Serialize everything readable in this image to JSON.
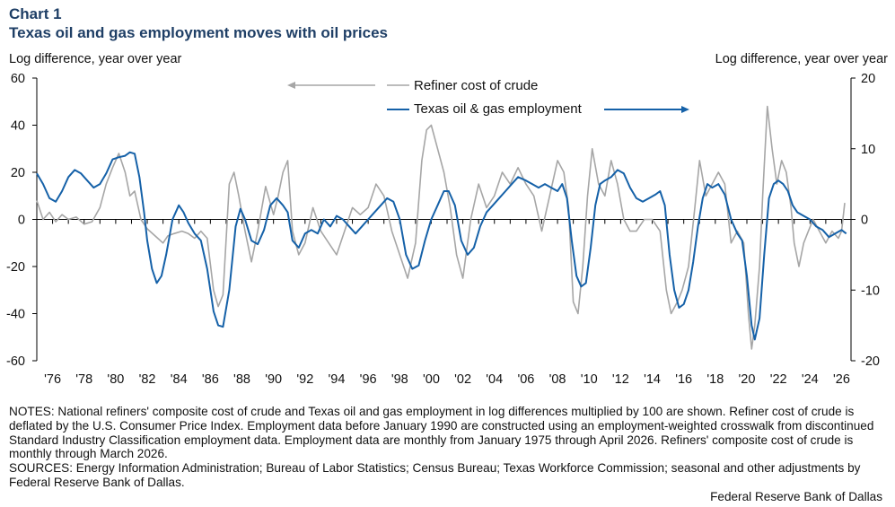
{
  "header": {
    "kicker": "Chart 1",
    "title": "Texas oil and gas employment moves with oil prices",
    "left_axis_label": "Log difference, year over year",
    "right_axis_label": "Log difference, year over year"
  },
  "colors": {
    "crude": "#a6a6a6",
    "employment": "#1561a8",
    "axis": "#000000",
    "title": "#1f3f66"
  },
  "chart_data": {
    "type": "line",
    "x_range": [
      1975.0,
      2026.6
    ],
    "x_tick_labels": [
      "'76",
      "'78",
      "'80",
      "'82",
      "'84",
      "'86",
      "'88",
      "'90",
      "'92",
      "'94",
      "'96",
      "'98",
      "'00",
      "'02",
      "'04",
      "'06",
      "'08",
      "'10",
      "'12",
      "'14",
      "'16",
      "'18",
      "'20",
      "'22",
      "'24",
      "'26"
    ],
    "x_tick_years": [
      1976,
      1978,
      1980,
      1982,
      1984,
      1986,
      1988,
      1990,
      1992,
      1994,
      1996,
      1998,
      2000,
      2002,
      2004,
      2006,
      2008,
      2010,
      2012,
      2014,
      2016,
      2018,
      2020,
      2022,
      2024,
      2026
    ],
    "left_axis": {
      "range": [
        -60,
        60
      ],
      "ticks": [
        -60,
        -40,
        -20,
        0,
        20,
        40,
        60
      ]
    },
    "right_axis": {
      "range": [
        -20,
        20
      ],
      "ticks": [
        -20,
        -10,
        0,
        10,
        20
      ]
    },
    "legend": [
      {
        "label": "Refiner cost of crude",
        "series": "crude",
        "arrow": "left"
      },
      {
        "label": "Texas oil & gas employment",
        "series": "employment",
        "arrow": "right"
      }
    ],
    "series": [
      {
        "name": "Refiner cost of crude",
        "key": "crude",
        "axis": "left",
        "points": [
          [
            1975.0,
            8
          ],
          [
            1975.4,
            0
          ],
          [
            1975.8,
            3
          ],
          [
            1976.2,
            -1
          ],
          [
            1976.6,
            2
          ],
          [
            1977.0,
            0
          ],
          [
            1977.5,
            1
          ],
          [
            1978.0,
            -2
          ],
          [
            1978.5,
            -1
          ],
          [
            1979.0,
            5
          ],
          [
            1979.4,
            15
          ],
          [
            1979.8,
            22
          ],
          [
            1980.2,
            28
          ],
          [
            1980.6,
            20
          ],
          [
            1980.9,
            10
          ],
          [
            1981.2,
            12
          ],
          [
            1981.6,
            0
          ],
          [
            1982.0,
            -4
          ],
          [
            1982.5,
            -7
          ],
          [
            1983.0,
            -10
          ],
          [
            1983.3,
            -7
          ],
          [
            1983.7,
            -6
          ],
          [
            1984.2,
            -5
          ],
          [
            1984.6,
            -6
          ],
          [
            1985.0,
            -8
          ],
          [
            1985.4,
            -5
          ],
          [
            1985.8,
            -8
          ],
          [
            1986.2,
            -30
          ],
          [
            1986.5,
            -37
          ],
          [
            1986.8,
            -32
          ],
          [
            1987.2,
            15
          ],
          [
            1987.5,
            20
          ],
          [
            1987.8,
            10
          ],
          [
            1988.2,
            -5
          ],
          [
            1988.6,
            -18
          ],
          [
            1989.0,
            -5
          ],
          [
            1989.5,
            14
          ],
          [
            1990.0,
            2
          ],
          [
            1990.3,
            10
          ],
          [
            1990.6,
            20
          ],
          [
            1990.9,
            25
          ],
          [
            1991.2,
            -5
          ],
          [
            1991.6,
            -15
          ],
          [
            1992.0,
            -10
          ],
          [
            1992.5,
            5
          ],
          [
            1993.0,
            -5
          ],
          [
            1993.5,
            -10
          ],
          [
            1994.0,
            -15
          ],
          [
            1994.5,
            -5
          ],
          [
            1995.0,
            5
          ],
          [
            1995.5,
            2
          ],
          [
            1996.0,
            5
          ],
          [
            1996.5,
            15
          ],
          [
            1997.0,
            10
          ],
          [
            1997.5,
            -5
          ],
          [
            1998.0,
            -15
          ],
          [
            1998.5,
            -25
          ],
          [
            1999.0,
            -10
          ],
          [
            1999.4,
            25
          ],
          [
            1999.7,
            38
          ],
          [
            2000.0,
            40
          ],
          [
            2000.4,
            30
          ],
          [
            2000.8,
            20
          ],
          [
            2001.2,
            5
          ],
          [
            2001.6,
            -15
          ],
          [
            2002.0,
            -25
          ],
          [
            2002.5,
            0
          ],
          [
            2003.0,
            15
          ],
          [
            2003.5,
            5
          ],
          [
            2004.0,
            10
          ],
          [
            2004.5,
            20
          ],
          [
            2005.0,
            15
          ],
          [
            2005.5,
            22
          ],
          [
            2006.0,
            15
          ],
          [
            2006.5,
            10
          ],
          [
            2007.0,
            -5
          ],
          [
            2007.5,
            10
          ],
          [
            2008.0,
            25
          ],
          [
            2008.4,
            20
          ],
          [
            2008.7,
            5
          ],
          [
            2009.0,
            -35
          ],
          [
            2009.3,
            -40
          ],
          [
            2009.6,
            -20
          ],
          [
            2009.9,
            10
          ],
          [
            2010.2,
            30
          ],
          [
            2010.6,
            15
          ],
          [
            2011.0,
            10
          ],
          [
            2011.4,
            25
          ],
          [
            2011.8,
            15
          ],
          [
            2012.2,
            0
          ],
          [
            2012.6,
            -5
          ],
          [
            2013.0,
            -5
          ],
          [
            2013.5,
            0
          ],
          [
            2014.0,
            0
          ],
          [
            2014.5,
            -5
          ],
          [
            2014.9,
            -30
          ],
          [
            2015.2,
            -40
          ],
          [
            2015.6,
            -35
          ],
          [
            2015.9,
            -30
          ],
          [
            2016.3,
            -20
          ],
          [
            2016.7,
            5
          ],
          [
            2017.0,
            25
          ],
          [
            2017.4,
            10
          ],
          [
            2017.8,
            15
          ],
          [
            2018.2,
            20
          ],
          [
            2018.6,
            15
          ],
          [
            2019.0,
            -10
          ],
          [
            2019.4,
            -5
          ],
          [
            2019.8,
            -10
          ],
          [
            2020.1,
            -40
          ],
          [
            2020.3,
            -55
          ],
          [
            2020.5,
            -45
          ],
          [
            2020.8,
            -20
          ],
          [
            2021.0,
            10
          ],
          [
            2021.3,
            48
          ],
          [
            2021.6,
            30
          ],
          [
            2021.9,
            15
          ],
          [
            2022.2,
            25
          ],
          [
            2022.5,
            20
          ],
          [
            2022.8,
            5
          ],
          [
            2023.0,
            -10
          ],
          [
            2023.3,
            -20
          ],
          [
            2023.6,
            -10
          ],
          [
            2023.9,
            -5
          ],
          [
            2024.2,
            0
          ],
          [
            2024.6,
            -5
          ],
          [
            2025.0,
            -10
          ],
          [
            2025.4,
            -5
          ],
          [
            2025.8,
            -8
          ],
          [
            2026.0,
            -5
          ],
          [
            2026.2,
            7
          ]
        ]
      },
      {
        "name": "Texas oil & gas employment",
        "key": "employment",
        "axis": "right",
        "points": [
          [
            1975.0,
            6.5
          ],
          [
            1975.4,
            5
          ],
          [
            1975.8,
            3
          ],
          [
            1976.2,
            2.5
          ],
          [
            1976.6,
            4
          ],
          [
            1977.0,
            6
          ],
          [
            1977.4,
            7
          ],
          [
            1977.8,
            6.5
          ],
          [
            1978.2,
            5.5
          ],
          [
            1978.6,
            4.5
          ],
          [
            1979.0,
            5
          ],
          [
            1979.4,
            6.5
          ],
          [
            1979.8,
            8.5
          ],
          [
            1980.2,
            8.8
          ],
          [
            1980.6,
            9
          ],
          [
            1980.9,
            9.5
          ],
          [
            1981.2,
            9.3
          ],
          [
            1981.5,
            6
          ],
          [
            1981.8,
            1
          ],
          [
            1982.0,
            -3
          ],
          [
            1982.3,
            -7
          ],
          [
            1982.6,
            -9
          ],
          [
            1982.9,
            -8
          ],
          [
            1983.2,
            -5
          ],
          [
            1983.6,
            0
          ],
          [
            1984.0,
            2
          ],
          [
            1984.3,
            1
          ],
          [
            1984.6,
            -0.5
          ],
          [
            1985.0,
            -2
          ],
          [
            1985.4,
            -3
          ],
          [
            1985.8,
            -7
          ],
          [
            1986.2,
            -13
          ],
          [
            1986.5,
            -15
          ],
          [
            1986.8,
            -15.2
          ],
          [
            1987.2,
            -10
          ],
          [
            1987.6,
            -1
          ],
          [
            1987.9,
            1.5
          ],
          [
            1988.2,
            0
          ],
          [
            1988.6,
            -3
          ],
          [
            1989.0,
            -3.5
          ],
          [
            1989.4,
            -1.5
          ],
          [
            1989.8,
            2
          ],
          [
            1990.2,
            3
          ],
          [
            1990.6,
            2
          ],
          [
            1990.9,
            1
          ],
          [
            1991.2,
            -3
          ],
          [
            1991.6,
            -4
          ],
          [
            1992.0,
            -2
          ],
          [
            1992.4,
            -1.5
          ],
          [
            1992.8,
            -2
          ],
          [
            1993.2,
            0
          ],
          [
            1993.6,
            -1
          ],
          [
            1994.0,
            0.5
          ],
          [
            1994.4,
            0
          ],
          [
            1994.8,
            -1
          ],
          [
            1995.2,
            -2
          ],
          [
            1995.6,
            -1
          ],
          [
            1996.0,
            0
          ],
          [
            1996.4,
            1
          ],
          [
            1996.8,
            2
          ],
          [
            1997.2,
            3
          ],
          [
            1997.6,
            2.5
          ],
          [
            1998.0,
            0
          ],
          [
            1998.4,
            -5
          ],
          [
            1998.8,
            -7
          ],
          [
            1999.2,
            -6.5
          ],
          [
            1999.6,
            -3
          ],
          [
            2000.0,
            0
          ],
          [
            2000.4,
            2
          ],
          [
            2000.8,
            4
          ],
          [
            2001.1,
            4
          ],
          [
            2001.5,
            2
          ],
          [
            2001.9,
            -3
          ],
          [
            2002.3,
            -5
          ],
          [
            2002.7,
            -4
          ],
          [
            2003.1,
            -1
          ],
          [
            2003.5,
            1
          ],
          [
            2003.9,
            2
          ],
          [
            2004.3,
            3
          ],
          [
            2004.7,
            4
          ],
          [
            2005.1,
            5
          ],
          [
            2005.5,
            6
          ],
          [
            2006.0,
            5.5
          ],
          [
            2006.4,
            5
          ],
          [
            2006.8,
            4.5
          ],
          [
            2007.2,
            5
          ],
          [
            2007.6,
            4.5
          ],
          [
            2008.0,
            4
          ],
          [
            2008.3,
            5
          ],
          [
            2008.6,
            3
          ],
          [
            2008.9,
            -3
          ],
          [
            2009.2,
            -8
          ],
          [
            2009.5,
            -9.5
          ],
          [
            2009.8,
            -9
          ],
          [
            2010.1,
            -4
          ],
          [
            2010.4,
            2
          ],
          [
            2010.7,
            5
          ],
          [
            2011.0,
            5.5
          ],
          [
            2011.4,
            6
          ],
          [
            2011.8,
            7
          ],
          [
            2012.2,
            6.5
          ],
          [
            2012.6,
            4.5
          ],
          [
            2013.0,
            3
          ],
          [
            2013.4,
            2.5
          ],
          [
            2013.8,
            3
          ],
          [
            2014.2,
            3.5
          ],
          [
            2014.5,
            4
          ],
          [
            2014.8,
            2
          ],
          [
            2015.1,
            -5
          ],
          [
            2015.4,
            -10
          ],
          [
            2015.7,
            -12.5
          ],
          [
            2016.0,
            -12
          ],
          [
            2016.3,
            -10
          ],
          [
            2016.6,
            -6
          ],
          [
            2016.9,
            -1
          ],
          [
            2017.2,
            3
          ],
          [
            2017.5,
            5
          ],
          [
            2017.8,
            4.5
          ],
          [
            2018.2,
            5
          ],
          [
            2018.6,
            3.5
          ],
          [
            2019.0,
            0
          ],
          [
            2019.4,
            -2
          ],
          [
            2019.7,
            -3
          ],
          [
            2020.0,
            -8
          ],
          [
            2020.3,
            -15
          ],
          [
            2020.5,
            -17
          ],
          [
            2020.8,
            -14
          ],
          [
            2021.1,
            -5
          ],
          [
            2021.4,
            3
          ],
          [
            2021.7,
            5
          ],
          [
            2022.0,
            5.5
          ],
          [
            2022.3,
            5
          ],
          [
            2022.6,
            4
          ],
          [
            2022.9,
            2
          ],
          [
            2023.2,
            1
          ],
          [
            2023.6,
            0.5
          ],
          [
            2024.0,
            0
          ],
          [
            2024.4,
            -1
          ],
          [
            2024.8,
            -1.5
          ],
          [
            2025.2,
            -2.5
          ],
          [
            2025.6,
            -2
          ],
          [
            2026.0,
            -1.5
          ],
          [
            2026.3,
            -2
          ]
        ]
      }
    ]
  },
  "notes": {
    "notes_text": "NOTES: National refiners' composite cost of crude and Texas oil and gas employment in log differences multiplied by 100 are shown. Refiner cost of crude is deflated by the U.S. Consumer Price Index. Employment data before January 1990 are constructed using an employment-weighted crosswalk from discontinued Standard Industry Classification employment data. Employment data are monthly from January 1975 through April 2026. Refiners' composite cost of crude is monthly through March 2026.",
    "sources_text": "SOURCES: Energy Information Administration; Bureau of Labor Statistics; Census Bureau; Texas Workforce Commission; seasonal and other adjustments by Federal Reserve Bank of Dallas.",
    "credit": "Federal Reserve Bank of Dallas"
  }
}
